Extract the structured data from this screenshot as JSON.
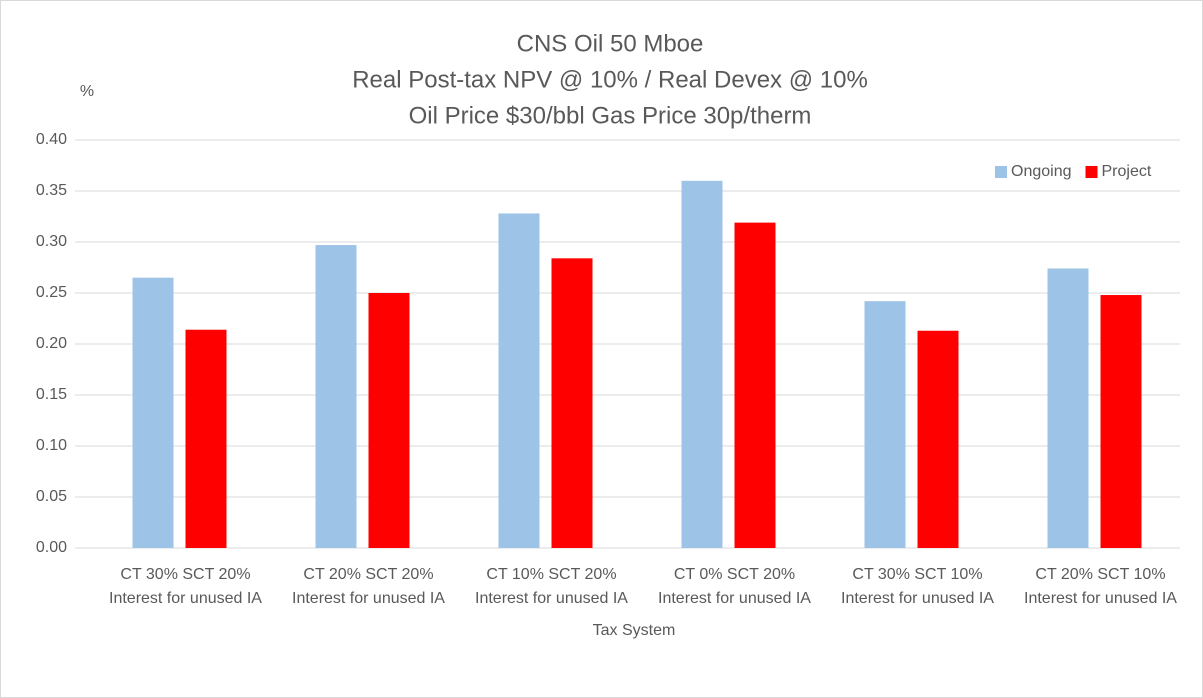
{
  "chart_data": {
    "type": "bar",
    "title": [
      "CNS Oil 50 Mboe",
      "Real Post-tax NPV @ 10% / Real Devex @ 10%",
      "Oil Price $30/bbl Gas Price 30p/therm"
    ],
    "y_label": "%",
    "x_label": "Tax System",
    "categories": [
      [
        "CT 30% SCT 20%",
        "Interest for unused IA"
      ],
      [
        "CT 20% SCT 20%",
        "Interest for unused IA"
      ],
      [
        "CT 10% SCT 20%",
        "Interest for unused IA"
      ],
      [
        "CT 0% SCT 20%",
        "Interest for unused IA"
      ],
      [
        "CT 30% SCT 10%",
        "Interest for unused IA"
      ],
      [
        "CT 20% SCT 10%",
        "Interest for unused IA"
      ]
    ],
    "series": [
      {
        "name": "Ongoing",
        "color": "#9dc3e6",
        "values": [
          0.265,
          0.297,
          0.328,
          0.36,
          0.242,
          0.274
        ]
      },
      {
        "name": "Project",
        "color": "#ff0000",
        "values": [
          0.214,
          0.25,
          0.284,
          0.319,
          0.213,
          0.248
        ]
      }
    ],
    "ylim": [
      0,
      0.4
    ],
    "yticks": [
      {
        "value": 0,
        "label": "0.00"
      },
      {
        "value": 0.05,
        "label": "0.05"
      },
      {
        "value": 0.1,
        "label": "0.10"
      },
      {
        "value": 0.15,
        "label": "0.15"
      },
      {
        "value": 0.2,
        "label": "0.20"
      },
      {
        "value": 0.25,
        "label": "0.25"
      },
      {
        "value": 0.3,
        "label": "0.30"
      },
      {
        "value": 0.35,
        "label": "0.35"
      },
      {
        "value": 0.4,
        "label": "0.40"
      }
    ],
    "grid": true,
    "legend": "top-right"
  }
}
